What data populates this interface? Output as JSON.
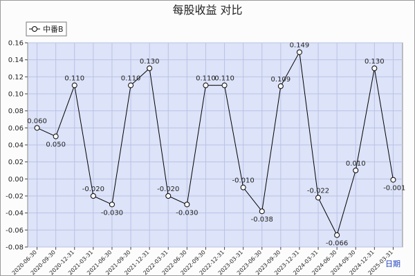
{
  "chart_data": {
    "type": "line",
    "title": "每股收益  对比",
    "xlabel": "日期",
    "ylabel": "",
    "ylim": [
      -0.08,
      0.16
    ],
    "yticks": [
      "0.16",
      "0.14",
      "0.12",
      "0.10",
      "0.08",
      "0.06",
      "0.04",
      "0.02",
      "0.00",
      "-0.02",
      "-0.04",
      "-0.06",
      "-0.08"
    ],
    "grid": true,
    "legend": "top-left",
    "categories": [
      "2020-06-30",
      "2020-09-30",
      "2020-12-31",
      "2021-03-31",
      "2021-06-30",
      "2021-09-30",
      "2021-12-31",
      "2022-03-31",
      "2022-06-30",
      "2022-09-30",
      "2022-12-31",
      "2023-03-31",
      "2023-06-30",
      "2023-09-30",
      "2023-12-31",
      "2024-03-31",
      "2024-06-30",
      "2024-09-30",
      "2024-12-31",
      "2025-03-31"
    ],
    "series": [
      {
        "name": "中番B",
        "values": [
          0.06,
          0.05,
          0.11,
          -0.02,
          -0.03,
          0.11,
          0.13,
          -0.02,
          -0.03,
          0.11,
          0.11,
          -0.01,
          -0.038,
          0.109,
          0.149,
          -0.022,
          -0.066,
          0.01,
          0.13,
          -0.001
        ],
        "labels": [
          "0.060",
          "0.050",
          "0.110",
          "-0.020",
          "-0.030",
          "0.110",
          "0.130",
          "-0.020",
          "-0.030",
          "0.110",
          "0.110",
          "-0.010",
          "-0.038",
          "0.109",
          "0.149",
          "-0.022",
          "-0.066",
          "0.010",
          "0.130",
          "-0.001"
        ]
      }
    ],
    "colors": {
      "plot_bg": "#dde3f8",
      "grid": "#b9c2e6",
      "line": "#000000",
      "marker": "#000000"
    }
  }
}
